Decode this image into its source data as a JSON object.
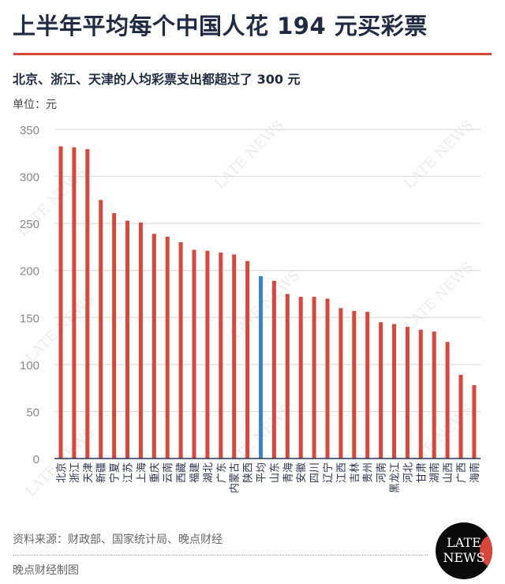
{
  "header": {
    "title": "上半年平均每个中国人花 194 元买彩票",
    "subtitle": "北京、浙江、天津的人均彩票支出都超过了 300 元",
    "unit": "单位：元"
  },
  "footer": {
    "source": "资料来源：财政部、国家统计局、晚点财经",
    "credit": "晚点财经制图"
  },
  "logo": {
    "line1": "LATE",
    "line2": "NEWS"
  },
  "watermark": "LATE NEWS",
  "colors": {
    "bar": "#d9473a",
    "highlight": "#3a82d6",
    "grid": "#dddddd",
    "axis": "#2b3352",
    "title": "#1f2a44"
  },
  "chart_data": {
    "type": "bar",
    "title": "上半年平均每个中国人花 194 元买彩票",
    "subtitle": "北京、浙江、天津的人均彩票支出都超过了 300 元",
    "xlabel": "",
    "ylabel": "单位：元",
    "ylim": [
      0,
      350
    ],
    "yticks": [
      0,
      50,
      100,
      150,
      200,
      250,
      300,
      350
    ],
    "grid": true,
    "legend": "none",
    "highlight_category": "平均",
    "categories": [
      "北京",
      "浙江",
      "天津",
      "新疆",
      "宁夏",
      "江苏",
      "上海",
      "重庆",
      "云南",
      "西藏",
      "福建",
      "湖北",
      "广东",
      "内蒙古",
      "陕西",
      "平均",
      "山东",
      "青海",
      "安徽",
      "四川",
      "辽宁",
      "江西",
      "吉林",
      "贵州",
      "河南",
      "黑龙江",
      "河北",
      "甘肃",
      "湖南",
      "山西",
      "广西",
      "海南"
    ],
    "values": [
      332,
      331,
      329,
      275,
      261,
      253,
      251,
      239,
      236,
      230,
      222,
      221,
      219,
      217,
      210,
      194,
      189,
      175,
      172,
      172,
      170,
      160,
      157,
      156,
      145,
      143,
      140,
      137,
      135,
      124,
      89,
      78
    ]
  }
}
